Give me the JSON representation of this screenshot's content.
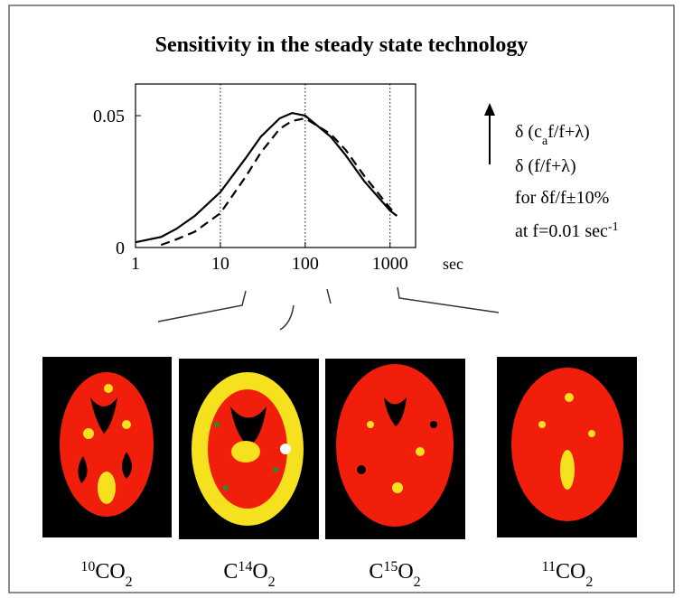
{
  "chart_data": {
    "type": "line",
    "title": "Sensitivity in the steady state technology",
    "x_label": "sec",
    "xscale": "log",
    "xlim": [
      1,
      2000
    ],
    "xticks": [
      1,
      10,
      100,
      1000
    ],
    "ylim": [
      0,
      0.062
    ],
    "yticks": [
      0,
      0.05
    ],
    "x_grid": true,
    "series": [
      {
        "style": "solid",
        "color": "#000000",
        "x": [
          1,
          2,
          3,
          5,
          10,
          20,
          30,
          50,
          70,
          100,
          200,
          300,
          500,
          1000,
          1200
        ],
        "values": [
          0.002,
          0.004,
          0.007,
          0.012,
          0.021,
          0.034,
          0.042,
          0.049,
          0.051,
          0.05,
          0.042,
          0.035,
          0.025,
          0.014,
          0.012
        ]
      },
      {
        "style": "dashed",
        "color": "#000000",
        "x": [
          2,
          3,
          5,
          10,
          20,
          30,
          50,
          70,
          100,
          200,
          300,
          500,
          1000,
          1200
        ],
        "values": [
          0.001,
          0.003,
          0.006,
          0.013,
          0.027,
          0.036,
          0.045,
          0.048,
          0.049,
          0.043,
          0.037,
          0.027,
          0.015,
          0.012
        ]
      }
    ],
    "annotations": [
      [
        "δ (c",
        "a",
        "f/f+λ)"
      ],
      [
        "δ (f/f+λ)"
      ],
      [
        "for δf/f±10%"
      ],
      [
        "at f=0.01 sec",
        "-1"
      ]
    ]
  },
  "images": [
    {
      "label": [
        "10",
        "CO",
        "2"
      ]
    },
    {
      "label": [
        "C",
        "14",
        "O",
        "2"
      ]
    },
    {
      "label": [
        "C",
        "15",
        "O",
        "2"
      ]
    },
    {
      "label": [
        "11",
        "CO",
        "2"
      ]
    }
  ]
}
